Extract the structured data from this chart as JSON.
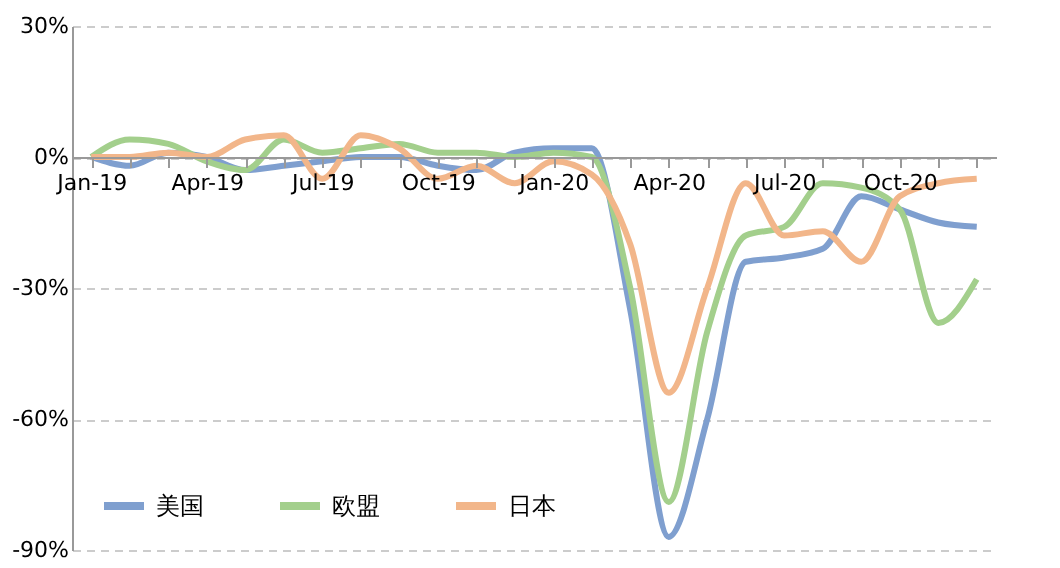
{
  "chart_data": {
    "type": "line",
    "categories": [
      "Jan-19",
      null,
      null,
      "Apr-19",
      null,
      null,
      "Jul-19",
      null,
      null,
      "Oct-19",
      null,
      null,
      "Jan-20",
      null,
      null,
      "Apr-20",
      null,
      null,
      "Jul-20",
      null,
      null,
      "Oct-20",
      null,
      null
    ],
    "series": [
      {
        "name": "美国",
        "color": "#7f9fcf",
        "values": [
          0,
          -2,
          1,
          0,
          -3,
          -2,
          -1,
          0,
          0,
          -2,
          -3,
          1,
          2,
          2,
          -35,
          -87,
          -60,
          -24,
          -23,
          -21,
          -9,
          -12,
          -15,
          -16
        ]
      },
      {
        "name": "欧盟",
        "color": "#a3cf8c",
        "values": [
          0,
          4,
          3,
          -1,
          -3,
          4,
          1,
          2,
          3,
          1,
          1,
          0,
          1,
          0,
          -30,
          -79,
          -40,
          -18,
          -16,
          -6,
          -7,
          -12,
          -38,
          -28
        ]
      },
      {
        "name": "日本",
        "color": "#f2b68a",
        "values": [
          0,
          0,
          1,
          0,
          4,
          5,
          -5,
          5,
          2,
          -5,
          -2,
          -6,
          -1,
          -4,
          -20,
          -54,
          -30,
          -6,
          -18,
          -17,
          -24,
          -9,
          -6,
          -5
        ]
      }
    ],
    "ylim": [
      -90,
      30
    ],
    "yticks": [
      {
        "value": -90,
        "label": "-90%"
      },
      {
        "value": -60,
        "label": "-60%"
      },
      {
        "value": -30,
        "label": "-30%"
      },
      {
        "value": 0,
        "label": "0%"
      },
      {
        "value": 30,
        "label": "30%"
      }
    ],
    "grid": "y",
    "legend": "bottom left",
    "marker": "none",
    "line_style": "solid"
  }
}
